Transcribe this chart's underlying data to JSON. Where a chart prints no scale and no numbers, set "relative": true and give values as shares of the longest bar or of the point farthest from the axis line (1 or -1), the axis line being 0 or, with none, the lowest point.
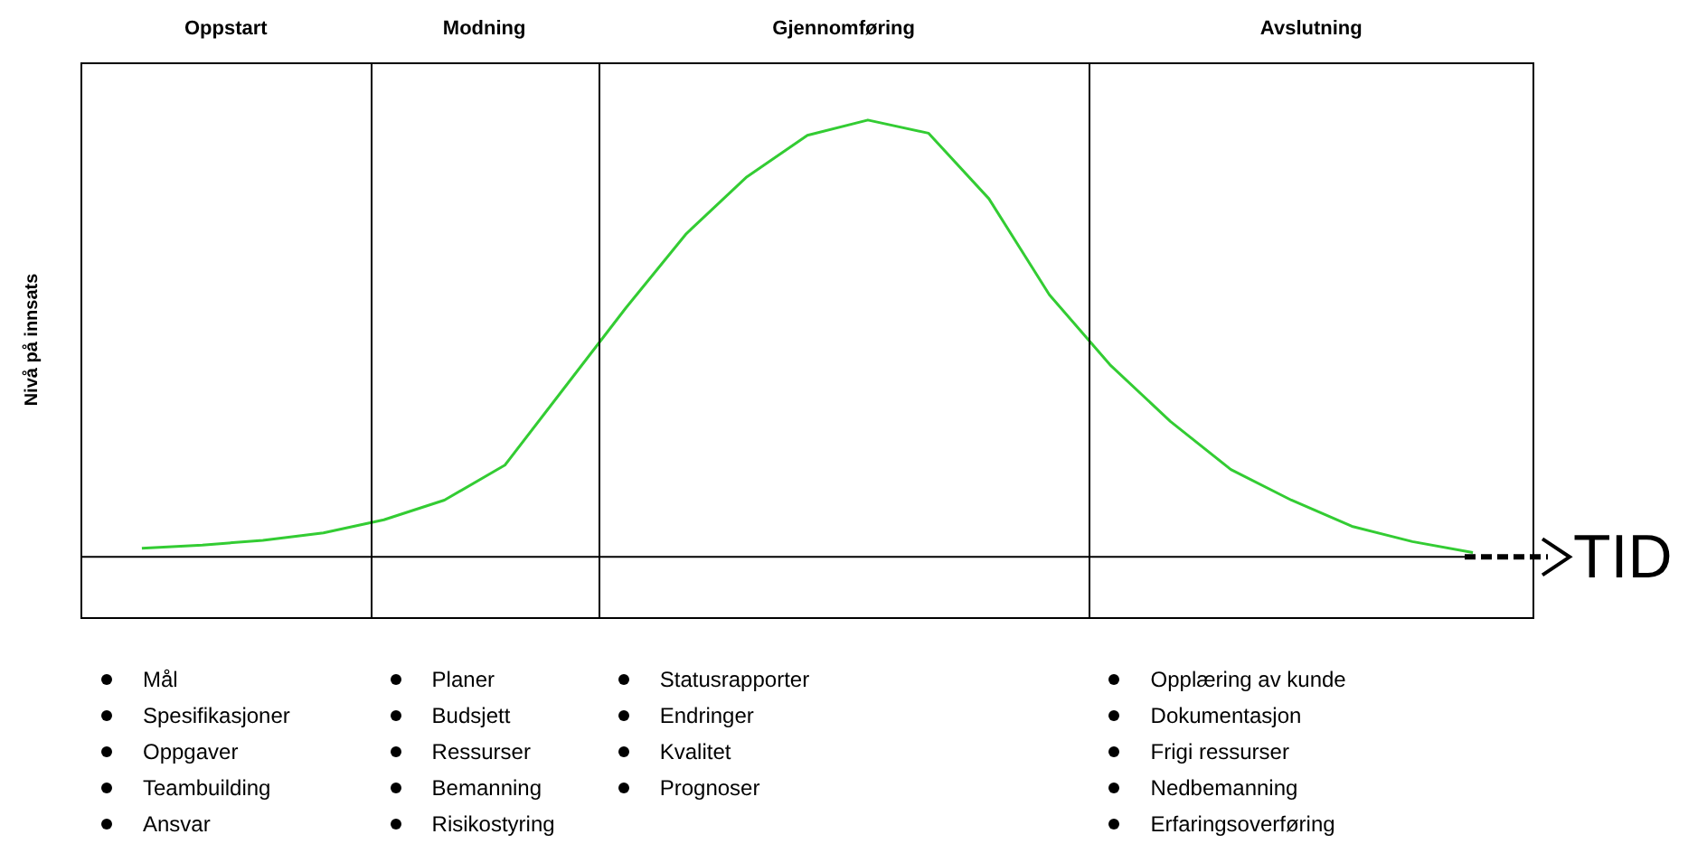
{
  "chart_data": {
    "type": "line",
    "ylabel": "Nivå på innsats",
    "xlabel": "TID",
    "relative": true,
    "tick_labels": false,
    "grid": false,
    "legend": false,
    "marker": "none",
    "line_style": "solid",
    "categories": [
      null,
      null,
      null,
      null,
      null,
      null,
      null,
      null,
      null,
      null,
      null,
      null,
      null,
      null,
      null,
      null,
      null,
      null,
      null,
      null,
      null,
      null,
      null,
      null,
      null
    ],
    "series": [
      {
        "color": "#33cc33",
        "values": [
          null,
          0.02,
          0.027,
          0.038,
          0.055,
          0.085,
          0.13,
          0.21,
          0.39,
          0.57,
          0.74,
          0.87,
          0.965,
          1,
          0.97,
          0.82,
          0.6,
          0.44,
          0.31,
          0.2,
          0.13,
          0.07,
          0.035,
          0.01,
          null
        ]
      }
    ],
    "annotations": [
      "Oppstart",
      "Modning",
      "Gjennomføring",
      "Avslutning",
      "Mål\nSpesifikasjoner\nOppgaver\nTeambuilding\nAnsvar",
      "Planer\nBudsjett\nRessurser\nBemanning\nRisikostyring",
      "Statusrapporter\nEndringer\nKvalitet\nPrognoser",
      "Opplæring av kunde\nDokumentasjon\nFrigi ressurser\nNedbemanning\nErfaringsoverføring"
    ]
  }
}
